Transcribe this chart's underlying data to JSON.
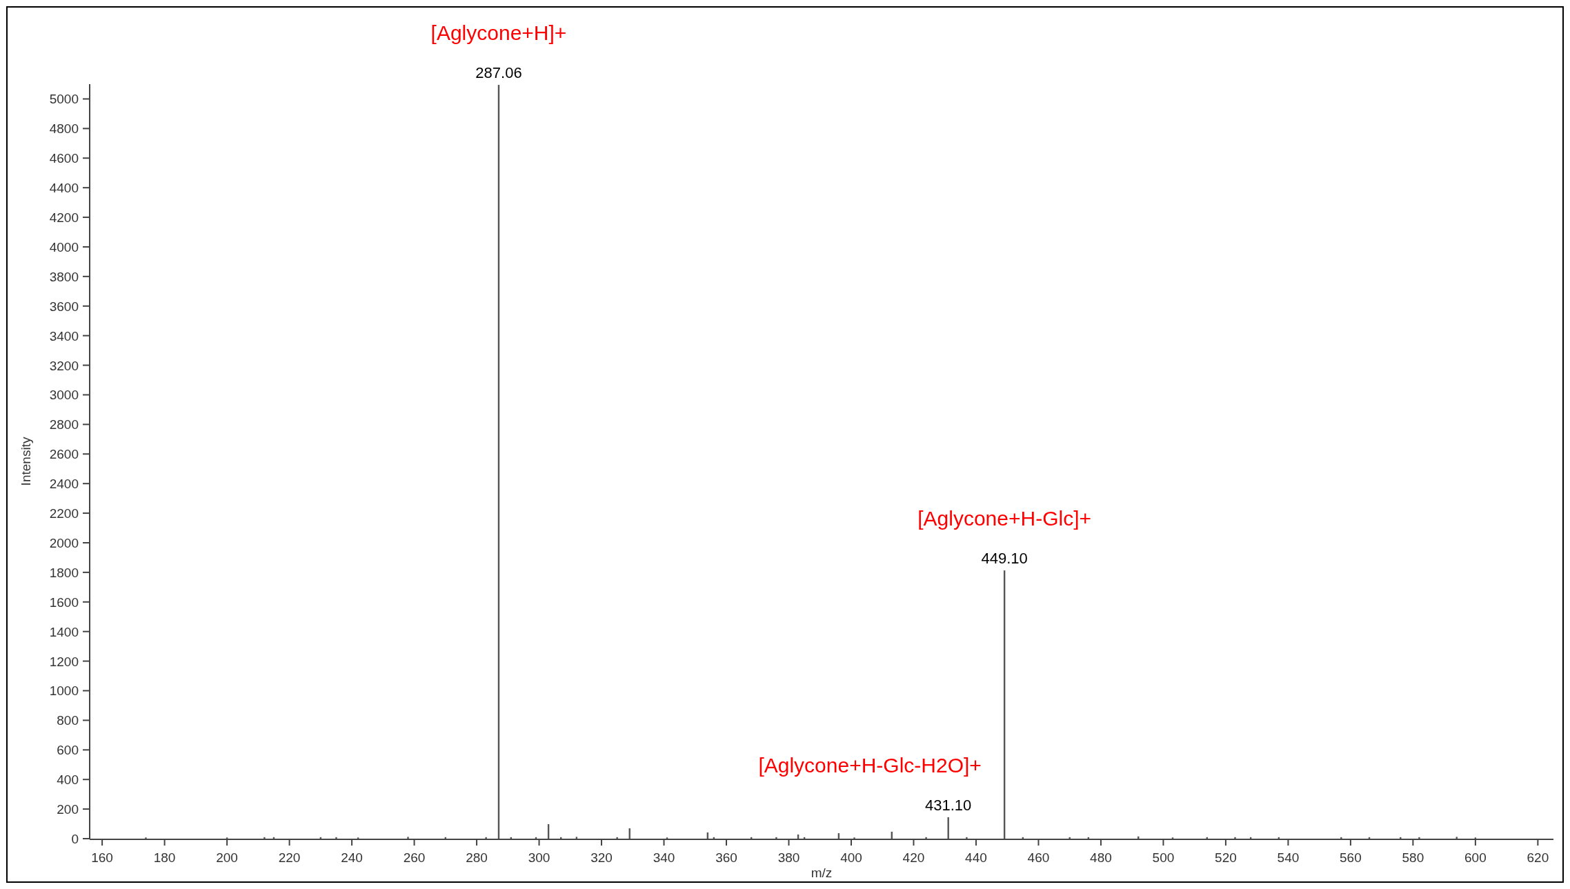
{
  "chart_data": {
    "type": "bar",
    "xlabel": "m/z",
    "ylabel": "Intensity",
    "x": [
      174,
      200,
      212,
      215,
      230,
      235,
      242,
      258,
      270,
      283,
      287.06,
      291,
      299,
      303,
      307,
      312,
      325,
      329,
      341,
      354,
      356,
      368,
      376,
      383,
      385,
      396,
      401,
      413,
      424,
      431.1,
      437,
      449.1,
      455,
      470,
      476,
      492,
      503,
      514,
      523,
      528,
      537,
      557,
      566,
      576,
      582,
      594,
      600
    ],
    "values": [
      8,
      8,
      10,
      10,
      10,
      10,
      8,
      12,
      10,
      10,
      5095,
      10,
      10,
      98,
      10,
      12,
      10,
      70,
      8,
      42,
      10,
      10,
      10,
      28,
      10,
      37,
      8,
      47,
      10,
      145,
      10,
      1813,
      10,
      10,
      10,
      15,
      8,
      10,
      10,
      10,
      10,
      10,
      10,
      10,
      10,
      12,
      8
    ],
    "color": "#555555",
    "xlim": [
      156,
      625
    ],
    "xticks": [
      160,
      180,
      200,
      220,
      240,
      260,
      280,
      300,
      320,
      340,
      360,
      380,
      400,
      420,
      440,
      460,
      480,
      500,
      520,
      540,
      560,
      580,
      600,
      620
    ],
    "ylim": [
      0,
      5100
    ],
    "yticks": [
      0,
      200,
      400,
      600,
      800,
      1000,
      1200,
      1400,
      1600,
      1800,
      2000,
      2200,
      2400,
      2600,
      2800,
      3000,
      3200,
      3400,
      3600,
      3800,
      4000,
      4200,
      4400,
      4600,
      4800,
      5000
    ],
    "annotations": [
      {
        "text": "287.06",
        "x": 287.06,
        "y": 5095
      },
      {
        "text": "[Aglycone+H]+",
        "x": 287.06,
        "y": 5095
      },
      {
        "text": "449.10",
        "x": 449.1,
        "y": 1813
      },
      {
        "text": "[Aglycone+H-Glc]+",
        "x": 449.1,
        "y": 1813
      },
      {
        "text": "431.10",
        "x": 431.1,
        "y": 145
      },
      {
        "text": "[Aglycone+H-Glc-H2O]+",
        "x": 431.1,
        "y": 145
      }
    ]
  }
}
